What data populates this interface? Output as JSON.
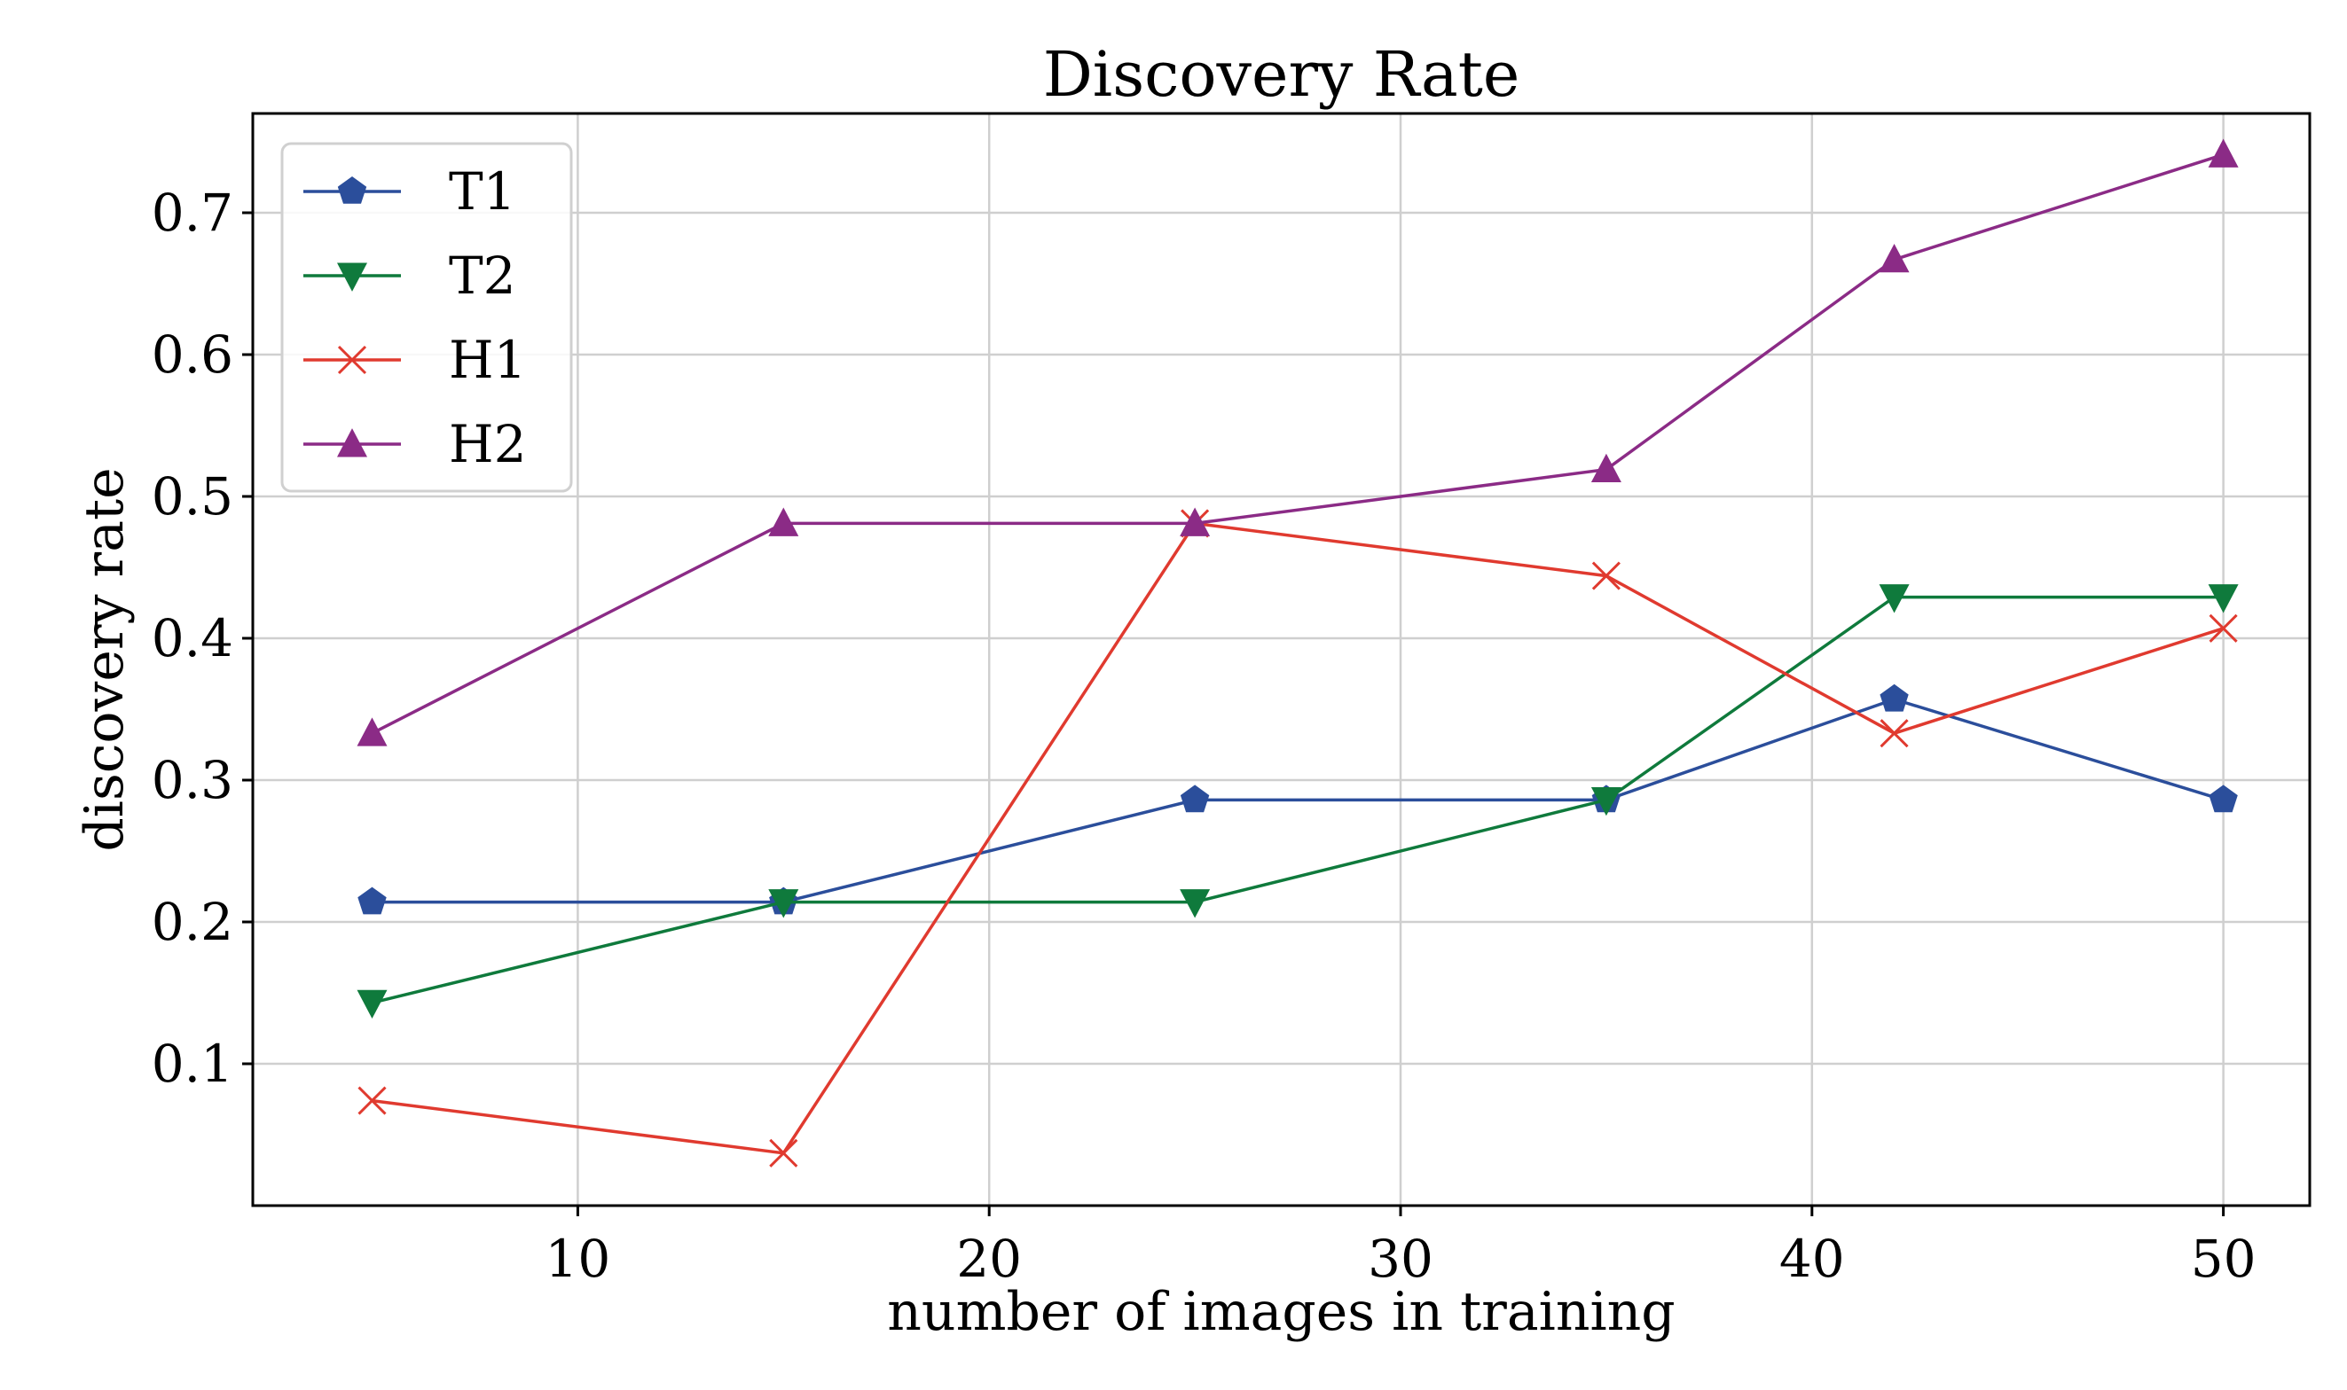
{
  "chart_data": {
    "type": "line",
    "title": "Discovery Rate",
    "xlabel": "number of images in training",
    "ylabel": "discovery rate",
    "xlim": [
      2.1,
      52.1
    ],
    "ylim": [
      -0.0,
      0.77
    ],
    "xticks": [
      10,
      20,
      30,
      40,
      50
    ],
    "xtick_labels": [
      "10",
      "20",
      "30",
      "40",
      "50"
    ],
    "yticks": [
      0.1,
      0.2,
      0.3,
      0.4,
      0.5,
      0.6,
      0.7
    ],
    "ytick_labels": [
      "0.1",
      "0.2",
      "0.3",
      "0.4",
      "0.5",
      "0.6",
      "0.7"
    ],
    "grid": true,
    "legend_position": "top-left",
    "x": [
      5,
      15,
      25,
      35,
      42,
      50
    ],
    "series": [
      {
        "name": "T1",
        "color": "#2b4e9b",
        "marker": "pentagon",
        "values": [
          0.214,
          0.214,
          0.286,
          0.286,
          0.357,
          0.286
        ]
      },
      {
        "name": "T2",
        "color": "#0f7a3c",
        "marker": "triangle-down",
        "values": [
          0.143,
          0.214,
          0.214,
          0.286,
          0.429,
          0.429
        ]
      },
      {
        "name": "H1",
        "color": "#e03a2f",
        "marker": "x",
        "values": [
          0.074,
          0.037,
          0.481,
          0.444,
          0.333,
          0.407
        ]
      },
      {
        "name": "H2",
        "color": "#8b2b86",
        "marker": "triangle-up",
        "values": [
          0.333,
          0.481,
          0.481,
          0.519,
          0.667,
          0.741
        ]
      }
    ]
  }
}
